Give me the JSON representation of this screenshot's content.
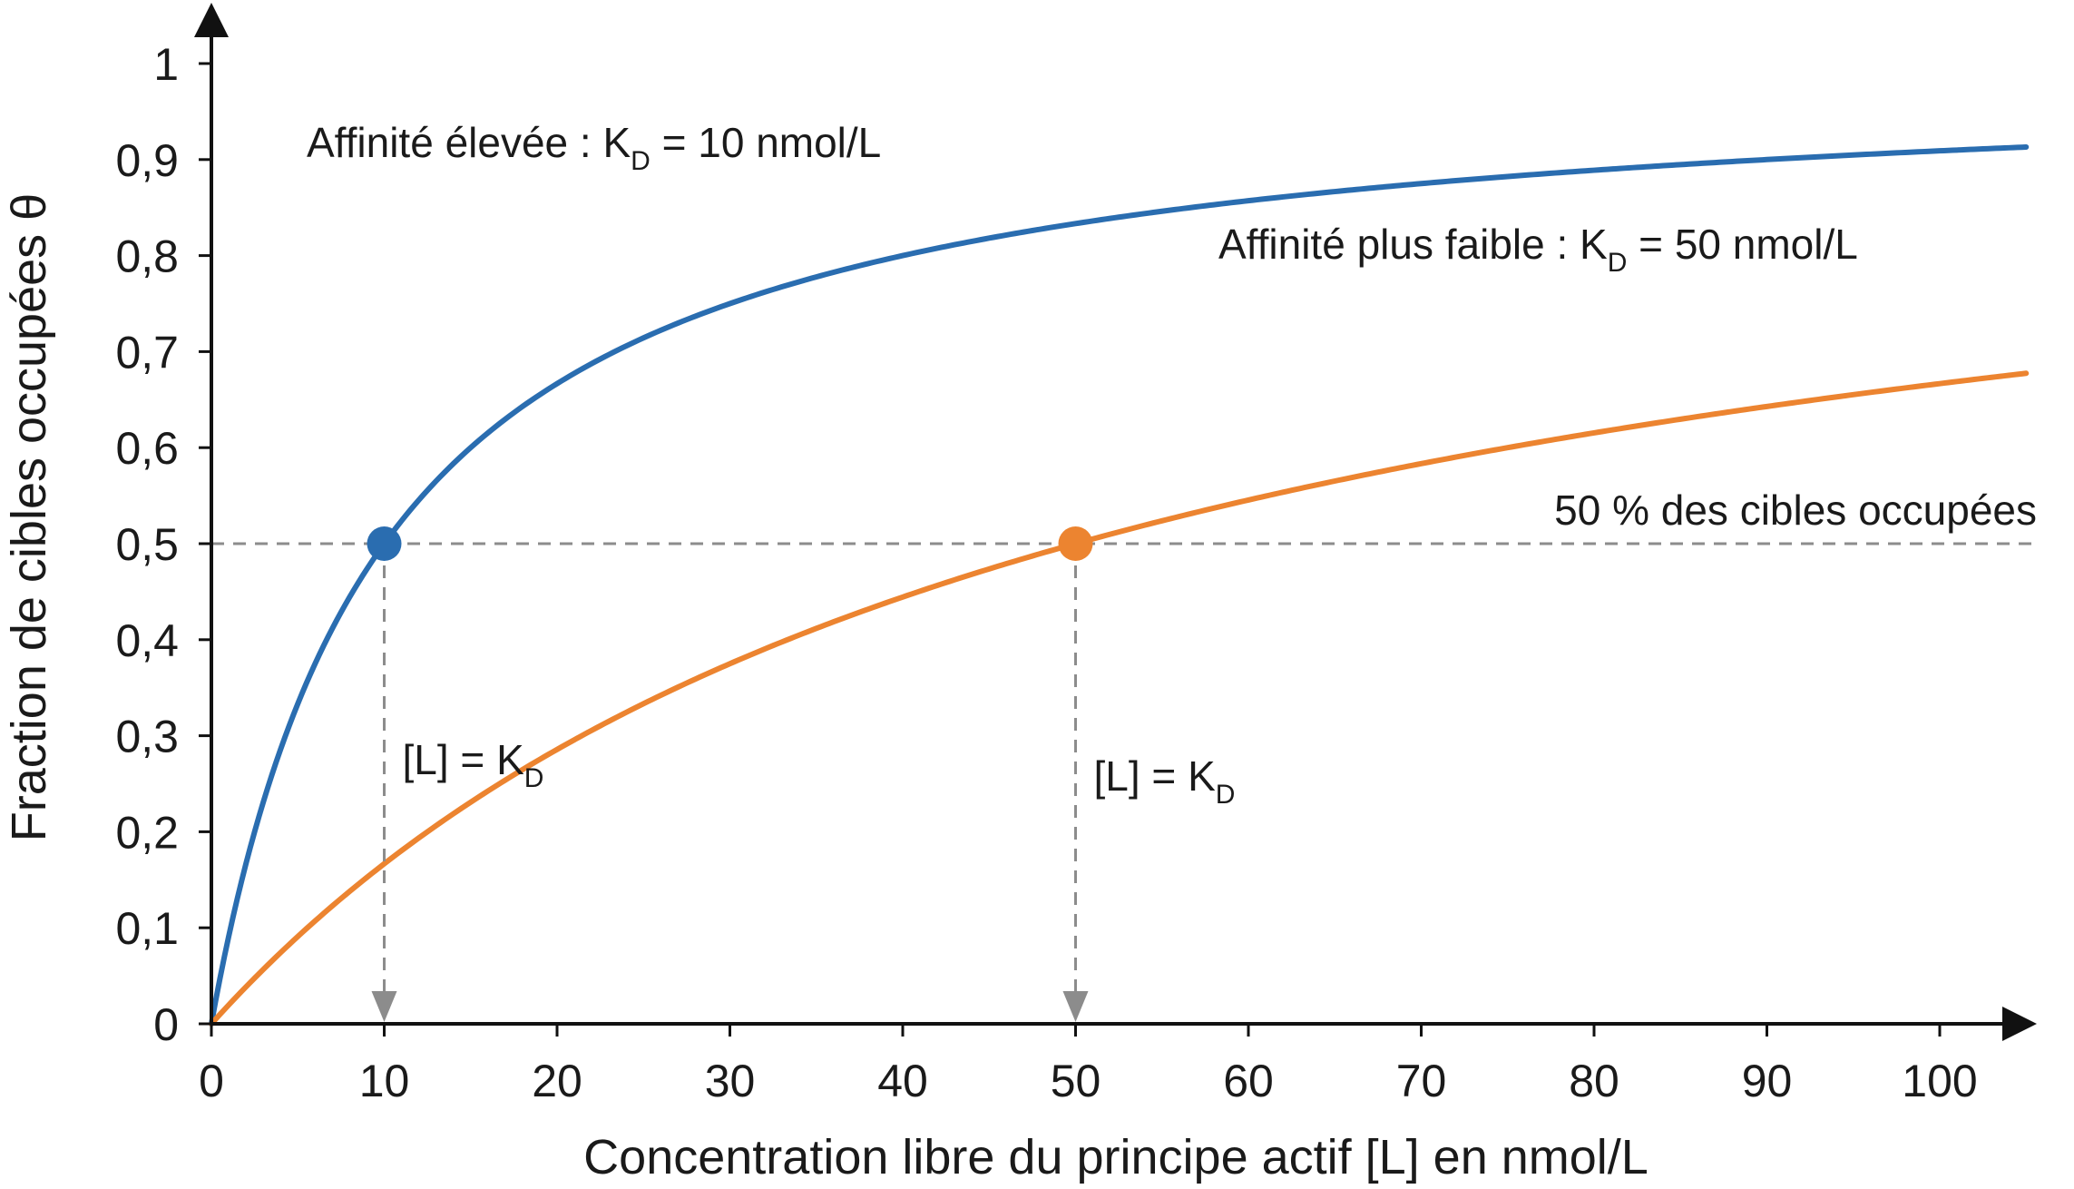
{
  "chart_data": {
    "type": "line",
    "xlabel": "Concentration libre du principe actif [L] en nmol/L",
    "ylabel": "Fraction de cibles occupées θ",
    "xlim": [
      0,
      105
    ],
    "ylim": [
      0,
      1
    ],
    "x_ticks": [
      "0",
      "10",
      "20",
      "30",
      "40",
      "50",
      "60",
      "70",
      "80",
      "90",
      "100"
    ],
    "y_ticks": [
      "0",
      "0,1",
      "0,2",
      "0,3",
      "0,4",
      "0,5",
      "0,6",
      "0,7",
      "0,8",
      "0,9",
      "1"
    ],
    "grid": false,
    "series": [
      {
        "color": "#2a6db0",
        "kd": 10,
        "label_prefix": "Affinité élevée : K",
        "label_sub": "D",
        "label_suffix": " = 10 nmol/L",
        "x": [
          0,
          2,
          5,
          10,
          15,
          20,
          30,
          40,
          50,
          60,
          70,
          80,
          90,
          100,
          105
        ],
        "y": [
          0,
          0.167,
          0.333,
          0.5,
          0.6,
          0.667,
          0.75,
          0.8,
          0.833,
          0.857,
          0.875,
          0.889,
          0.9,
          0.909,
          0.913
        ]
      },
      {
        "color": "#ec8430",
        "kd": 50,
        "label_prefix": "Affinité plus faible : K",
        "label_sub": "D",
        "label_suffix": " = 50 nmol/L",
        "x": [
          0,
          10,
          20,
          30,
          40,
          50,
          60,
          70,
          80,
          90,
          100,
          105
        ],
        "y": [
          0,
          0.167,
          0.286,
          0.375,
          0.444,
          0.5,
          0.545,
          0.583,
          0.615,
          0.643,
          0.667,
          0.677
        ]
      }
    ],
    "reference_line": {
      "y": 0.5,
      "label": "50 % des cibles occupées"
    },
    "markers": [
      {
        "x": 10,
        "y": 0.5,
        "color": "#2a6db0",
        "label_prefix": "[L] = K",
        "label_sub": "D"
      },
      {
        "x": 50,
        "y": 0.5,
        "color": "#ec8430",
        "label_prefix": "[L] = K",
        "label_sub": "D"
      }
    ],
    "guide_color": "#8c8c8c"
  }
}
